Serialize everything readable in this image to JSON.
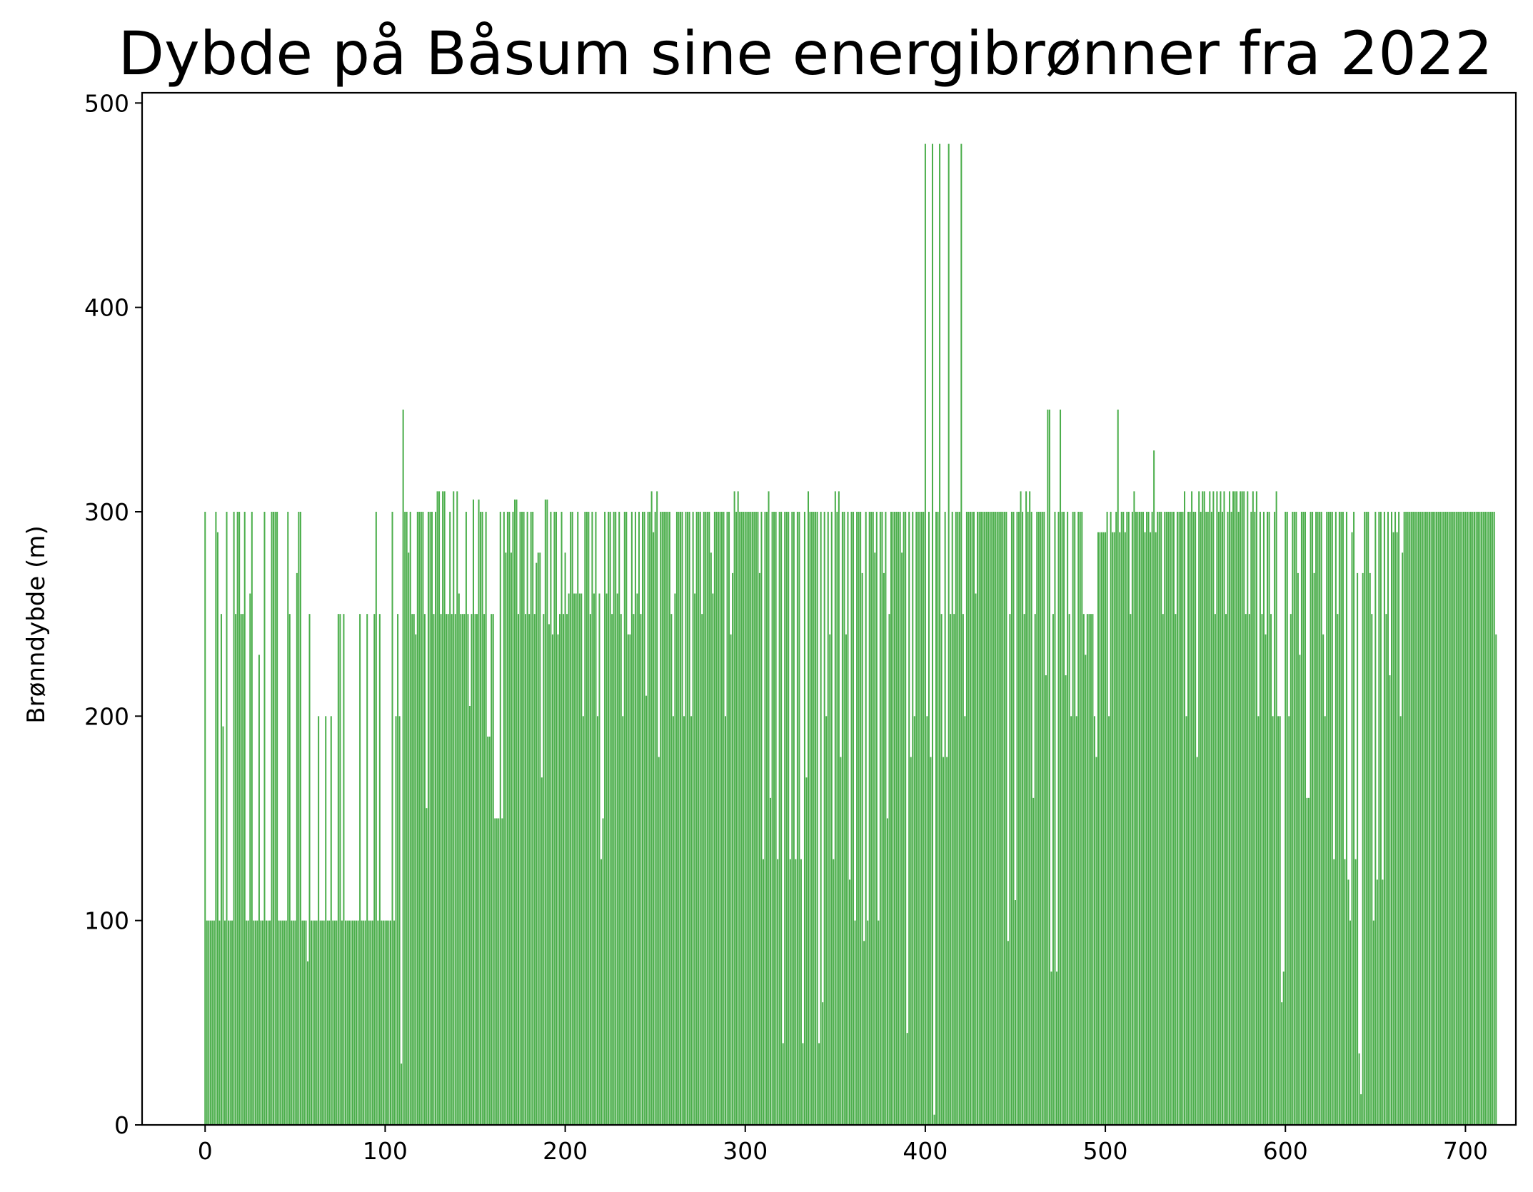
{
  "chart_data": {
    "type": "bar",
    "title": "Dybde på Båsum sine energibrønner fra 2022",
    "xlabel": "",
    "ylabel": "Brønndybde (m)",
    "xlim": [
      -35,
      728
    ],
    "ylim": [
      0,
      505
    ],
    "xticks": [
      0,
      100,
      200,
      300,
      400,
      500,
      600,
      700
    ],
    "yticks": [
      0,
      100,
      200,
      300,
      400,
      500
    ],
    "grid": false,
    "legend": "none",
    "bar_color": "#2ca02c",
    "bar_alpha": 0.85,
    "x_start": 0,
    "values": [
      300,
      100,
      100,
      100,
      100,
      100,
      300,
      290,
      100,
      250,
      195,
      100,
      300,
      100,
      100,
      100,
      300,
      250,
      300,
      300,
      250,
      250,
      300,
      100,
      100,
      260,
      300,
      100,
      100,
      100,
      230,
      100,
      100,
      300,
      100,
      100,
      100,
      300,
      300,
      300,
      300,
      100,
      100,
      100,
      100,
      100,
      300,
      250,
      100,
      100,
      100,
      270,
      300,
      300,
      100,
      100,
      100,
      80,
      250,
      100,
      100,
      100,
      100,
      200,
      100,
      100,
      100,
      200,
      100,
      100,
      200,
      100,
      100,
      100,
      250,
      250,
      100,
      250,
      100,
      100,
      100,
      100,
      100,
      100,
      100,
      100,
      250,
      100,
      100,
      100,
      250,
      100,
      100,
      100,
      250,
      300,
      100,
      250,
      100,
      100,
      100,
      100,
      100,
      100,
      300,
      100,
      200,
      250,
      200,
      30,
      350,
      300,
      300,
      280,
      300,
      250,
      250,
      240,
      300,
      300,
      300,
      300,
      250,
      155,
      300,
      300,
      300,
      250,
      300,
      310,
      310,
      250,
      310,
      310,
      250,
      250,
      300,
      250,
      310,
      250,
      310,
      260,
      250,
      250,
      250,
      300,
      250,
      205,
      250,
      306,
      250,
      250,
      306,
      300,
      300,
      250,
      300,
      190,
      190,
      250,
      250,
      150,
      150,
      150,
      300,
      150,
      300,
      280,
      300,
      300,
      280,
      300,
      306,
      306,
      250,
      300,
      300,
      300,
      250,
      300,
      250,
      300,
      300,
      250,
      275,
      280,
      280,
      170,
      250,
      306,
      306,
      245,
      300,
      240,
      300,
      300,
      240,
      250,
      300,
      250,
      280,
      250,
      260,
      300,
      300,
      260,
      260,
      300,
      260,
      260,
      200,
      300,
      300,
      300,
      250,
      300,
      260,
      300,
      200,
      260,
      130,
      150,
      300,
      260,
      300,
      300,
      250,
      300,
      300,
      260,
      300,
      250,
      200,
      300,
      300,
      240,
      240,
      300,
      250,
      300,
      260,
      300,
      250,
      300,
      300,
      210,
      300,
      300,
      310,
      290,
      300,
      310,
      180,
      300,
      300,
      300,
      300,
      300,
      300,
      250,
      200,
      260,
      300,
      300,
      300,
      300,
      200,
      300,
      300,
      300,
      200,
      300,
      260,
      300,
      300,
      300,
      250,
      300,
      300,
      300,
      300,
      280,
      260,
      300,
      300,
      300,
      300,
      300,
      300,
      200,
      300,
      300,
      240,
      270,
      310,
      300,
      310,
      300,
      300,
      300,
      300,
      300,
      300,
      300,
      300,
      300,
      300,
      300,
      270,
      300,
      130,
      300,
      300,
      310,
      160,
      300,
      300,
      300,
      130,
      300,
      300,
      40,
      300,
      300,
      300,
      130,
      300,
      300,
      130,
      300,
      300,
      130,
      40,
      300,
      170,
      310,
      300,
      300,
      300,
      300,
      300,
      40,
      300,
      60,
      300,
      200,
      300,
      240,
      300,
      130,
      310,
      300,
      310,
      180,
      300,
      300,
      240,
      300,
      120,
      300,
      300,
      100,
      300,
      300,
      300,
      270,
      90,
      300,
      100,
      300,
      300,
      300,
      280,
      300,
      100,
      300,
      300,
      270,
      300,
      150,
      250,
      300,
      300,
      300,
      300,
      300,
      300,
      280,
      300,
      300,
      45,
      300,
      180,
      300,
      200,
      300,
      300,
      300,
      300,
      300,
      480,
      200,
      300,
      180,
      480,
      5,
      300,
      300,
      480,
      250,
      180,
      300,
      180,
      480,
      250,
      300,
      250,
      300,
      300,
      300,
      480,
      250,
      200,
      300,
      300,
      300,
      300,
      300,
      260,
      300,
      300,
      300,
      300,
      300,
      300,
      300,
      300,
      300,
      300,
      300,
      300,
      300,
      300,
      300,
      300,
      300,
      90,
      250,
      300,
      300,
      110,
      300,
      300,
      310,
      300,
      250,
      310,
      300,
      310,
      300,
      160,
      250,
      300,
      300,
      300,
      300,
      300,
      220,
      350,
      350,
      75,
      250,
      300,
      75,
      300,
      350,
      300,
      300,
      220,
      300,
      250,
      200,
      300,
      300,
      200,
      300,
      300,
      300,
      250,
      230,
      250,
      250,
      250,
      250,
      200,
      180,
      290,
      290,
      290,
      290,
      290,
      300,
      200,
      300,
      290,
      290,
      300,
      350,
      290,
      300,
      300,
      290,
      300,
      300,
      250,
      300,
      310,
      300,
      300,
      300,
      300,
      300,
      290,
      300,
      300,
      290,
      300,
      330,
      290,
      300,
      300,
      300,
      250,
      300,
      300,
      300,
      300,
      300,
      300,
      250,
      300,
      300,
      300,
      300,
      310,
      200,
      300,
      300,
      310,
      300,
      300,
      180,
      310,
      300,
      310,
      310,
      300,
      300,
      310,
      300,
      310,
      250,
      310,
      300,
      310,
      300,
      310,
      250,
      300,
      310,
      300,
      310,
      310,
      310,
      300,
      310,
      310,
      310,
      250,
      310,
      250,
      300,
      310,
      300,
      310,
      200,
      300,
      250,
      300,
      240,
      300,
      300,
      250,
      200,
      300,
      310,
      200,
      200,
      60,
      75,
      300,
      300,
      200,
      250,
      300,
      300,
      300,
      270,
      230,
      300,
      300,
      300,
      160,
      160,
      300,
      300,
      270,
      300,
      300,
      300,
      300,
      240,
      200,
      300,
      300,
      300,
      300,
      130,
      300,
      250,
      300,
      300,
      300,
      130,
      300,
      120,
      100,
      290,
      300,
      130,
      270,
      35,
      15,
      270,
      300,
      300,
      300,
      270,
      250,
      100,
      300,
      120,
      300,
      300,
      120,
      300,
      250,
      300,
      220,
      300,
      290,
      300,
      290,
      300,
      200,
      280,
      300,
      300,
      300,
      300,
      300,
      300,
      300,
      300,
      300,
      300,
      300,
      300,
      300,
      300,
      300,
      300,
      300,
      300,
      300,
      300,
      300,
      300,
      300,
      300,
      300,
      300,
      300,
      300,
      300,
      300,
      300,
      300,
      300,
      300,
      300,
      300,
      300,
      300,
      300,
      300,
      300,
      300,
      300,
      300,
      300,
      300,
      300,
      300,
      300,
      300,
      300,
      240
    ]
  }
}
